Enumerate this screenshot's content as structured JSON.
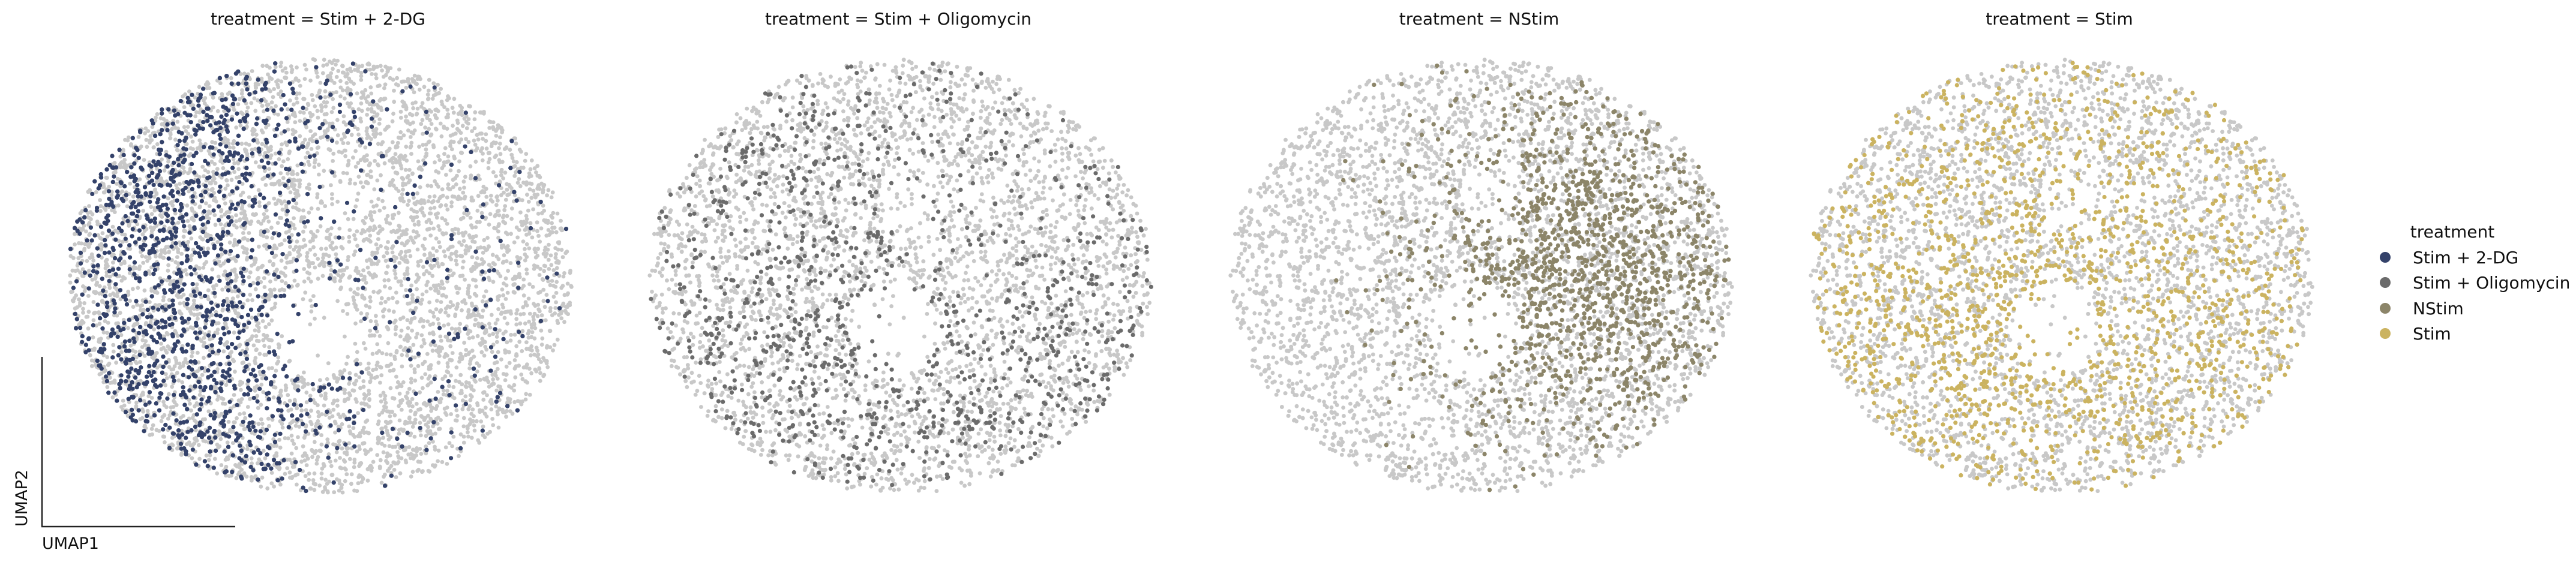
{
  "chart_data": {
    "type": "scatter",
    "embedding": "UMAP",
    "xlabel": "UMAP1",
    "ylabel": "UMAP2",
    "background_color": "#c8c8c8",
    "panels": [
      {
        "title": "treatment = Stim + 2-DG",
        "highlight": "Stim + 2-DG"
      },
      {
        "title": "treatment = Stim + Oligomycin",
        "highlight": "Stim + Oligomycin"
      },
      {
        "title": "treatment = NStim",
        "highlight": "NStim"
      },
      {
        "title": "treatment = Stim",
        "highlight": "Stim"
      }
    ],
    "legend": {
      "title": "treatment",
      "placement": "right",
      "entries": [
        {
          "label": "Stim + 2-DG",
          "color": "#34426a"
        },
        {
          "label": "Stim + Oligomycin",
          "color": "#6b6b6b"
        },
        {
          "label": "NStim",
          "color": "#8c8569"
        },
        {
          "label": "Stim",
          "color": "#cbb360"
        }
      ]
    }
  }
}
